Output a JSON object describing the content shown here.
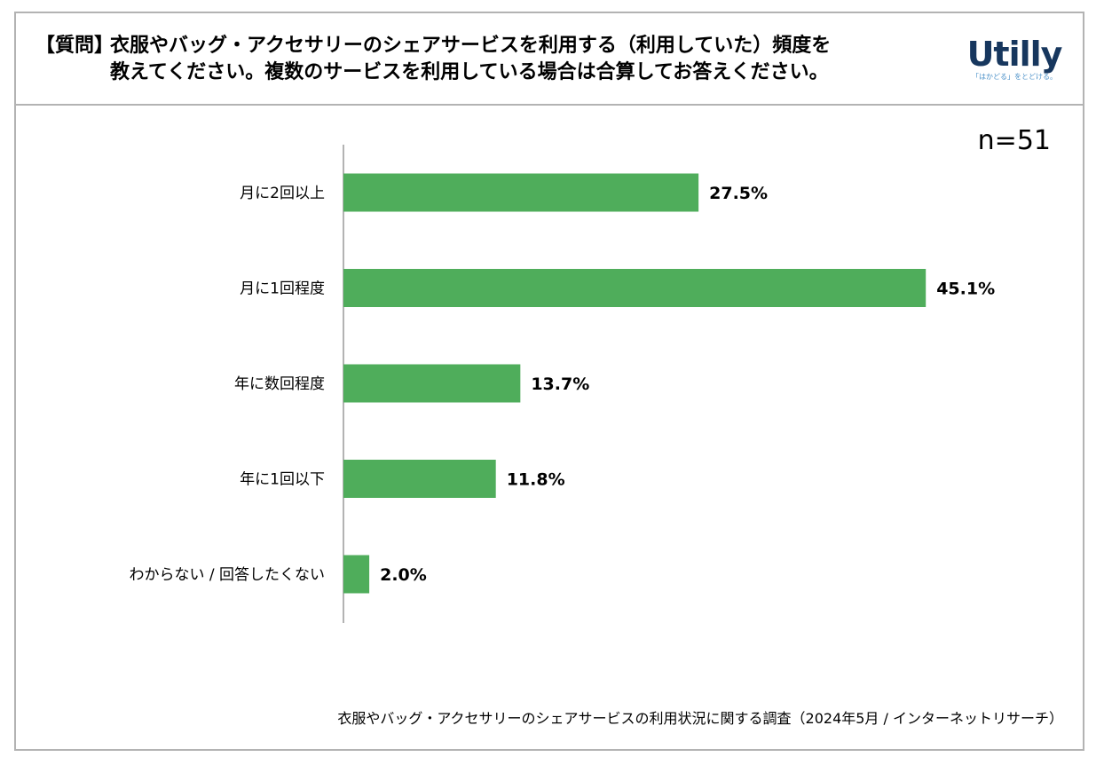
{
  "question": {
    "prefix": "【質問】",
    "line1": "衣服やバッグ・アクセサリーのシェアサービスを利用する（利用していた）頻度を",
    "line2": "教えてください。複数のサービスを利用している場合は合算してお答えください。"
  },
  "logo": {
    "wordmark": "Utilly",
    "tagline": "「はかどる」をとどける。",
    "color": "#17375e",
    "tagline_color": "#4a90c8"
  },
  "sample_size": "n=51",
  "footer": "衣服やバッグ・アクセサリーのシェアサービスの利用状況に関する調査（2024年5月 / インターネットリサーチ）",
  "chart_data": {
    "type": "bar",
    "orientation": "horizontal",
    "categories": [
      "月に2回以上",
      "月に1回程度",
      "年に数回程度",
      "年に1回以下",
      "わからない / 回答したくない"
    ],
    "values": [
      27.5,
      45.1,
      13.7,
      11.8,
      2.0
    ],
    "value_labels": [
      "27.5%",
      "45.1%",
      "13.7%",
      "11.8%",
      "2.0%"
    ],
    "unit": "%",
    "bar_color": "#4fad5b",
    "grid": false,
    "legend": "none"
  }
}
